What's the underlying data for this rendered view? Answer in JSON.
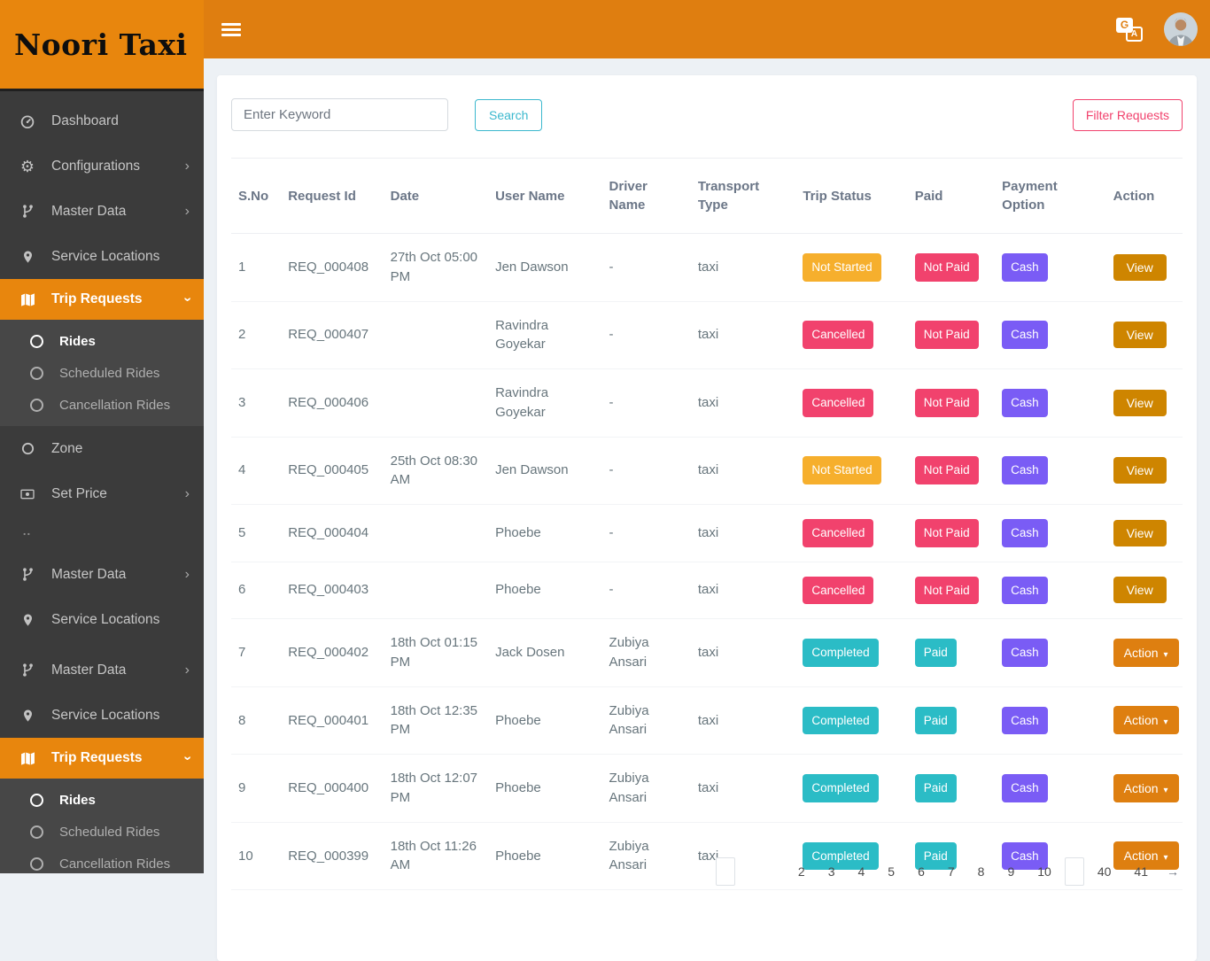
{
  "brand": {
    "name": "Noori Taxi"
  },
  "topbar": {
    "menu_icon": "hamburger-icon",
    "translate_icon": {
      "name": "google-translate-icon",
      "back_letter": "G",
      "front_letter": "A"
    },
    "avatar": "user-avatar"
  },
  "sidebar": {
    "items": [
      {
        "icon": "dashboard-icon",
        "label": "Dashboard"
      },
      {
        "icon": "gears-icon",
        "label": "Configurations",
        "chevron": "right"
      },
      {
        "icon": "branch-icon",
        "label": "Master Data",
        "chevron": "right"
      },
      {
        "icon": "map-marker-icon",
        "label": "Service Locations"
      },
      {
        "icon": "map-icon",
        "label": "Trip Requests",
        "chevron": "down",
        "active": true,
        "sub": [
          {
            "label": "Rides",
            "active": true
          },
          {
            "label": "Scheduled Rides"
          },
          {
            "label": "Cancellation Rides"
          }
        ]
      },
      {
        "icon": "radio-icon",
        "label": "Zone"
      },
      {
        "icon": "money-icon",
        "label": "Set Price",
        "chevron": "right"
      },
      {
        "icon": "dots-icon",
        "label": "",
        "short": true
      },
      {
        "icon": "branch-icon",
        "label": "Master Data",
        "chevron": "right"
      },
      {
        "icon": "map-marker-icon",
        "label": "Service Locations"
      },
      {
        "icon": "branch-icon",
        "label": "Master Data",
        "chevron": "right",
        "gap": true
      },
      {
        "icon": "map-marker-icon",
        "label": "Service Locations"
      },
      {
        "icon": "map-icon",
        "label": "Trip Requests",
        "chevron": "down",
        "active": true,
        "sub": [
          {
            "label": "Rides",
            "active": true
          },
          {
            "label": "Scheduled Rides"
          },
          {
            "label": "Cancellation Rides"
          }
        ]
      }
    ]
  },
  "toolbar": {
    "search_placeholder": "Enter Keyword",
    "search_button": "Search",
    "filter_button": "Filter Requests"
  },
  "table": {
    "columns": [
      "S.No",
      "Request Id",
      "Date",
      "User Name",
      "Driver Name",
      "Transport Type",
      "Trip Status",
      "Paid",
      "Payment Option",
      "Action"
    ],
    "rows": [
      {
        "sno": "1",
        "request_id": "REQ_000408",
        "date": "27th Oct 05:00 PM",
        "user": "Jen Dawson",
        "driver": "-",
        "transport": "taxi",
        "status": {
          "label": "Not Started",
          "color": "amber"
        },
        "paid": {
          "label": "Not Paid",
          "color": "pink"
        },
        "payment": {
          "label": "Cash",
          "color": "purple"
        },
        "action": {
          "label": "View",
          "caret": false
        }
      },
      {
        "sno": "2",
        "request_id": "REQ_000407",
        "date": "",
        "user": "Ravindra Goyekar",
        "driver": "-",
        "transport": "taxi",
        "status": {
          "label": "Cancelled",
          "color": "pink"
        },
        "paid": {
          "label": "Not Paid",
          "color": "pink"
        },
        "payment": {
          "label": "Cash",
          "color": "purple"
        },
        "action": {
          "label": "View",
          "caret": false
        }
      },
      {
        "sno": "3",
        "request_id": "REQ_000406",
        "date": "",
        "user": "Ravindra Goyekar",
        "driver": "-",
        "transport": "taxi",
        "status": {
          "label": "Cancelled",
          "color": "pink"
        },
        "paid": {
          "label": "Not Paid",
          "color": "pink"
        },
        "payment": {
          "label": "Cash",
          "color": "purple"
        },
        "action": {
          "label": "View",
          "caret": false
        }
      },
      {
        "sno": "4",
        "request_id": "REQ_000405",
        "date": "25th Oct 08:30 AM",
        "user": "Jen Dawson",
        "driver": "-",
        "transport": "taxi",
        "status": {
          "label": "Not Started",
          "color": "amber"
        },
        "paid": {
          "label": "Not Paid",
          "color": "pink"
        },
        "payment": {
          "label": "Cash",
          "color": "purple"
        },
        "action": {
          "label": "View",
          "caret": false
        }
      },
      {
        "sno": "5",
        "request_id": "REQ_000404",
        "date": "",
        "user": "Phoebe",
        "driver": "-",
        "transport": "taxi",
        "status": {
          "label": "Cancelled",
          "color": "pink"
        },
        "paid": {
          "label": "Not Paid",
          "color": "pink"
        },
        "payment": {
          "label": "Cash",
          "color": "purple"
        },
        "action": {
          "label": "View",
          "caret": false
        }
      },
      {
        "sno": "6",
        "request_id": "REQ_000403",
        "date": "",
        "user": "Phoebe",
        "driver": "-",
        "transport": "taxi",
        "status": {
          "label": "Cancelled",
          "color": "pink"
        },
        "paid": {
          "label": "Not Paid",
          "color": "pink"
        },
        "payment": {
          "label": "Cash",
          "color": "purple"
        },
        "action": {
          "label": "View",
          "caret": false
        }
      },
      {
        "sno": "7",
        "request_id": "REQ_000402",
        "date": "18th Oct 01:15 PM",
        "user": "Jack Dosen",
        "driver": "Zubiya Ansari",
        "transport": "taxi",
        "status": {
          "label": "Completed",
          "color": "teal"
        },
        "paid": {
          "label": "Paid",
          "color": "teal"
        },
        "payment": {
          "label": "Cash",
          "color": "purple"
        },
        "action": {
          "label": "Action",
          "caret": true
        }
      },
      {
        "sno": "8",
        "request_id": "REQ_000401",
        "date": "18th Oct 12:35 PM",
        "user": "Phoebe",
        "driver": "Zubiya Ansari",
        "transport": "taxi",
        "status": {
          "label": "Completed",
          "color": "teal"
        },
        "paid": {
          "label": "Paid",
          "color": "teal"
        },
        "payment": {
          "label": "Cash",
          "color": "purple"
        },
        "action": {
          "label": "Action",
          "caret": true
        }
      },
      {
        "sno": "9",
        "request_id": "REQ_000400",
        "date": "18th Oct 12:07 PM",
        "user": "Phoebe",
        "driver": "Zubiya Ansari",
        "transport": "taxi",
        "status": {
          "label": "Completed",
          "color": "teal"
        },
        "paid": {
          "label": "Paid",
          "color": "teal"
        },
        "payment": {
          "label": "Cash",
          "color": "purple"
        },
        "action": {
          "label": "Action",
          "caret": true
        }
      },
      {
        "sno": "10",
        "request_id": "REQ_000399",
        "date": "18th Oct 11:26 AM",
        "user": "Phoebe",
        "driver": "Zubiya Ansari",
        "transport": "taxi",
        "status": {
          "label": "Completed",
          "color": "teal"
        },
        "paid": {
          "label": "Paid",
          "color": "teal"
        },
        "payment": {
          "label": "Cash",
          "color": "purple"
        },
        "action": {
          "label": "Action",
          "caret": true
        }
      }
    ]
  },
  "pagination": {
    "has_prev_box": true,
    "visible_pages": [
      "2",
      "3",
      "4",
      "5",
      "6",
      "7",
      "8",
      "9",
      "10"
    ],
    "has_current_box": true,
    "far_pages": [
      "40",
      "41"
    ],
    "next_label": "→"
  },
  "colors": {
    "header_orange": "#DF7E10",
    "logo_orange": "#E8860D",
    "sidebar_dark": "#3B3B3B",
    "status_not_started": "#F6AF2D",
    "status_cancelled": "#F1426D",
    "status_completed": "#2BBCC6",
    "payment_cash": "#7A5CF5",
    "view_button": "#CE8500",
    "action_button": "#DE7F10",
    "search_accent": "#3BB8CE",
    "filter_accent": "#F1426D"
  }
}
